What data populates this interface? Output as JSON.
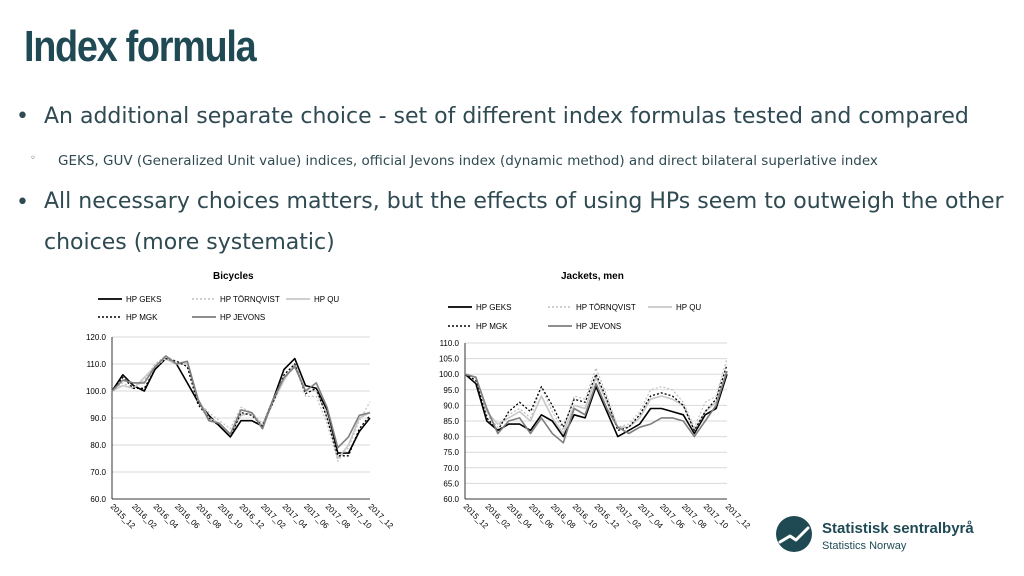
{
  "slide": {
    "title": "Index formula",
    "bullet1": "An additional separate choice - set of different index formulas tested and compared",
    "subbullet1": "GEKS, GUV (Generalized Unit value) indices, official Jevons index (dynamic method) and direct bilateral superlative index",
    "bullet2": "All necessary choices matters, but the effects of using HPs seem to outweigh the other choices (more systematic)",
    "bullet_glyph": "•",
    "subbullet_glyph": "◦"
  },
  "logo": {
    "name": "Statistisk sentralbyrå",
    "subtitle": "Statistics Norway"
  },
  "chart_data": [
    {
      "type": "line",
      "title": "Bicycles",
      "x": [
        "2015_12",
        "2016_01",
        "2016_02",
        "2016_03",
        "2016_04",
        "2016_05",
        "2016_06",
        "2016_07",
        "2016_08",
        "2016_09",
        "2016_10",
        "2016_11",
        "2016_12",
        "2017_01",
        "2017_02",
        "2017_03",
        "2017_04",
        "2017_05",
        "2017_06",
        "2017_07",
        "2017_08",
        "2017_09",
        "2017_10",
        "2017_11",
        "2017_12"
      ],
      "tick_labels": [
        "2015_12",
        "2016_02",
        "2016_04",
        "2016_06",
        "2016_08",
        "2016_10",
        "2016_12",
        "2017_02",
        "2017_04",
        "2017_06",
        "2017_08",
        "2017_10",
        "2017_12"
      ],
      "ylim": [
        60,
        120
      ],
      "yticks": [
        "60.0",
        "70.0",
        "80.0",
        "90.0",
        "100.0",
        "110.0",
        "120.0"
      ],
      "legend_position": "top",
      "series": [
        {
          "name": "HP GEKS",
          "style": "solid-black",
          "values": [
            100,
            106,
            102,
            100,
            108,
            112,
            110,
            103,
            96,
            91,
            87,
            83,
            89,
            89,
            87,
            97,
            108,
            112,
            102,
            101,
            93,
            77,
            77,
            85,
            90
          ]
        },
        {
          "name": "HP TÖRNQVIST",
          "style": "dotted-light",
          "values": [
            100,
            103,
            101,
            104,
            110,
            113,
            111,
            110,
            96,
            92,
            89,
            86,
            94,
            92,
            88,
            97,
            104,
            110,
            98,
            98,
            88,
            74,
            79,
            89,
            96
          ]
        },
        {
          "name": "HP QU",
          "style": "solid-light",
          "values": [
            100,
            102,
            101,
            105,
            109,
            112,
            110,
            110,
            97,
            90,
            88,
            84,
            91,
            92,
            87,
            96,
            104,
            110,
            100,
            100,
            91,
            75,
            80,
            90,
            92
          ]
        },
        {
          "name": "HP MGK",
          "style": "dotted-black",
          "values": [
            100,
            105,
            101,
            101,
            108,
            112,
            111,
            109,
            95,
            90,
            87,
            83,
            92,
            91,
            87,
            96,
            106,
            110,
            99,
            101,
            90,
            76,
            76,
            86,
            91
          ]
        },
        {
          "name": "HP JEVONS",
          "style": "solid-gray",
          "values": [
            100,
            104,
            103,
            103,
            109,
            113,
            110,
            111,
            97,
            89,
            88,
            84,
            93,
            92,
            86,
            97,
            105,
            109,
            100,
            103,
            94,
            79,
            83,
            91,
            92
          ]
        }
      ]
    },
    {
      "type": "line",
      "title": "Jackets, men",
      "x": [
        "2015_12",
        "2016_01",
        "2016_02",
        "2016_03",
        "2016_04",
        "2016_05",
        "2016_06",
        "2016_07",
        "2016_08",
        "2016_09",
        "2016_10",
        "2016_11",
        "2016_12",
        "2017_01",
        "2017_02",
        "2017_03",
        "2017_04",
        "2017_05",
        "2017_06",
        "2017_07",
        "2017_08",
        "2017_09",
        "2017_10",
        "2017_11",
        "2017_12"
      ],
      "tick_labels": [
        "2015_12",
        "2016_02",
        "2016_04",
        "2016_06",
        "2016_08",
        "2016_10",
        "2016_12",
        "2017_02",
        "2017_04",
        "2017_06",
        "2017_08",
        "2017_10",
        "2017_12"
      ],
      "ylim": [
        60,
        110
      ],
      "yticks": [
        "60.0",
        "65.0",
        "70.0",
        "75.0",
        "80.0",
        "85.0",
        "90.0",
        "95.0",
        "100.0",
        "105.0",
        "110.0"
      ],
      "legend_position": "top",
      "series": [
        {
          "name": "HP GEKS",
          "style": "solid-black",
          "values": [
            100,
            97,
            85,
            82,
            84,
            84,
            82,
            87,
            85,
            80,
            87,
            86,
            96,
            88,
            80,
            82,
            84,
            89,
            89,
            88,
            87,
            81,
            87,
            89,
            100
          ]
        },
        {
          "name": "HP TÖRNQVIST",
          "style": "dotted-light",
          "values": [
            100,
            98,
            87,
            83,
            87,
            89,
            86,
            96,
            88,
            82,
            93,
            92,
            102,
            93,
            83,
            84,
            88,
            95,
            96,
            95,
            91,
            83,
            91,
            93,
            105
          ]
        },
        {
          "name": "HP QU",
          "style": "solid-light",
          "values": [
            100,
            99,
            88,
            84,
            86,
            88,
            85,
            93,
            86,
            81,
            90,
            89,
            99,
            91,
            83,
            83,
            86,
            92,
            93,
            92,
            90,
            82,
            88,
            91,
            101
          ]
        },
        {
          "name": "HP MGK",
          "style": "dotted-black",
          "values": [
            100,
            98,
            86,
            82,
            88,
            91,
            88,
            96,
            90,
            83,
            92,
            91,
            100,
            92,
            82,
            83,
            87,
            93,
            94,
            93,
            90,
            82,
            88,
            92,
            103
          ]
        },
        {
          "name": "HP JEVONS",
          "style": "solid-gray",
          "values": [
            100,
            99,
            89,
            81,
            85,
            86,
            81,
            86,
            81,
            78,
            89,
            87,
            97,
            89,
            83,
            81,
            83,
            84,
            86,
            86,
            85,
            80,
            85,
            90,
            101
          ]
        }
      ]
    }
  ]
}
